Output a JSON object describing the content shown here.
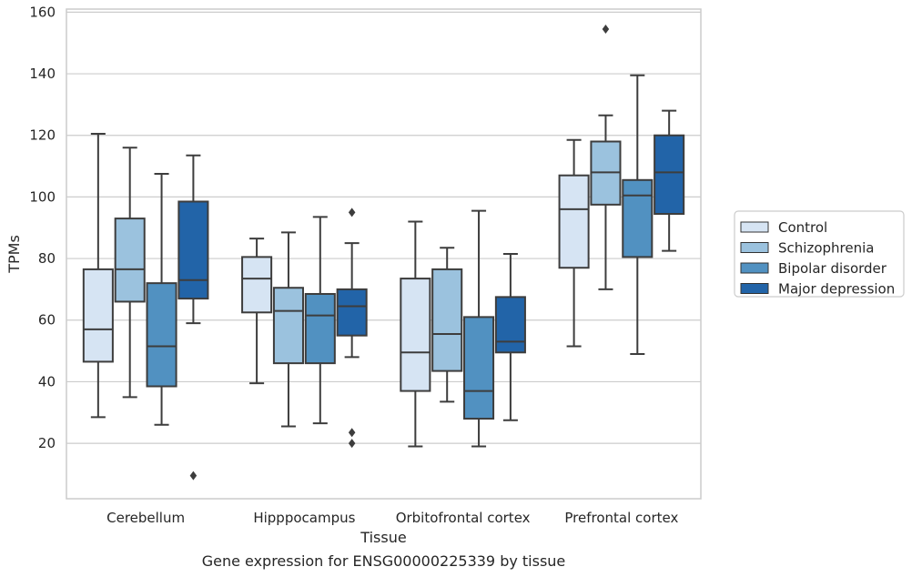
{
  "chart_data": {
    "type": "boxplot",
    "xlabel": "Tissue",
    "ylabel": "TPMs",
    "caption": "Gene expression for ENSG00000225339 by tissue",
    "ylim": [
      2,
      161
    ],
    "yticks": [
      20,
      40,
      60,
      80,
      100,
      120,
      140,
      160
    ],
    "grid": true,
    "legend_position": "right",
    "categories": [
      "Cerebellum",
      "Hipppocampus",
      "Orbitofrontal cortex",
      "Prefrontal cortex"
    ],
    "series": [
      {
        "name": "Control",
        "color": "#d6e4f3",
        "boxes": [
          {
            "whislo": 28.5,
            "q1": 46.5,
            "median": 57,
            "q3": 76.5,
            "whishi": 120.5,
            "fliers": []
          },
          {
            "whislo": 39.5,
            "q1": 62.5,
            "median": 73.5,
            "q3": 80.5,
            "whishi": 86.5,
            "fliers": []
          },
          {
            "whislo": 19,
            "q1": 37,
            "median": 49.5,
            "q3": 73.5,
            "whishi": 92,
            "fliers": []
          },
          {
            "whislo": 51.5,
            "q1": 77,
            "median": 96,
            "q3": 107,
            "whishi": 118.5,
            "fliers": []
          }
        ]
      },
      {
        "name": "Schizophrenia",
        "color": "#9bc2de",
        "boxes": [
          {
            "whislo": 35,
            "q1": 66,
            "median": 76.5,
            "q3": 93,
            "whishi": 116,
            "fliers": []
          },
          {
            "whislo": 25.5,
            "q1": 46,
            "median": 63,
            "q3": 70.5,
            "whishi": 88.5,
            "fliers": []
          },
          {
            "whislo": 33.5,
            "q1": 43.5,
            "median": 55.5,
            "q3": 76.5,
            "whishi": 83.5,
            "fliers": []
          },
          {
            "whislo": 70,
            "q1": 97.5,
            "median": 108,
            "q3": 118,
            "whishi": 126.5,
            "fliers": [
              154.5
            ]
          }
        ]
      },
      {
        "name": "Bipolar disorder",
        "color": "#5191c1",
        "boxes": [
          {
            "whislo": 26,
            "q1": 38.5,
            "median": 51.5,
            "q3": 72,
            "whishi": 107.5,
            "fliers": []
          },
          {
            "whislo": 26.5,
            "q1": 46,
            "median": 61.5,
            "q3": 68.5,
            "whishi": 93.5,
            "fliers": []
          },
          {
            "whislo": 19,
            "q1": 28,
            "median": 37,
            "q3": 61,
            "whishi": 95.5,
            "fliers": []
          },
          {
            "whislo": 49,
            "q1": 80.5,
            "median": 100.5,
            "q3": 105.5,
            "whishi": 139.5,
            "fliers": []
          }
        ]
      },
      {
        "name": "Major depression",
        "color": "#2264a8",
        "boxes": [
          {
            "whislo": 59,
            "q1": 67,
            "median": 73,
            "q3": 98.5,
            "whishi": 113.5,
            "fliers": [
              9.5
            ]
          },
          {
            "whislo": 48,
            "q1": 55,
            "median": 64.5,
            "q3": 70,
            "whishi": 85,
            "fliers": [
              95,
              23.5,
              20
            ]
          },
          {
            "whislo": 27.5,
            "q1": 49.5,
            "median": 53,
            "q3": 67.5,
            "whishi": 81.5,
            "fliers": []
          },
          {
            "whislo": 82.5,
            "q1": 94.5,
            "median": 108,
            "q3": 120,
            "whishi": 128,
            "fliers": []
          }
        ]
      }
    ]
  }
}
